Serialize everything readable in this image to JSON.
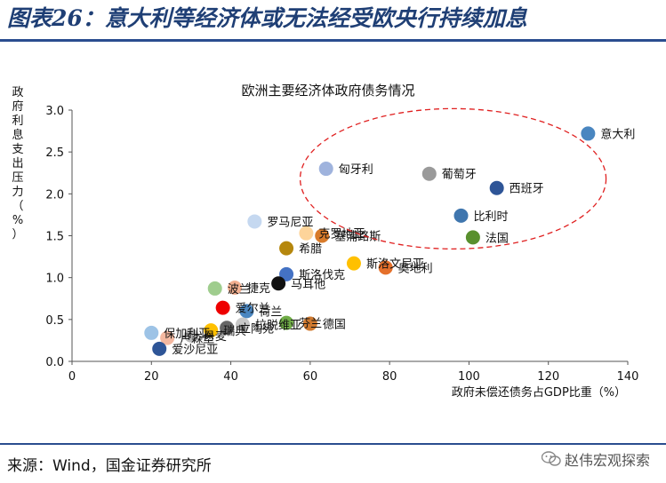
{
  "figure": {
    "title": "图表26：意大利等经济体或无法经受欧央行持续加息",
    "source": "来源：Wind，国金证券研究所",
    "watermark": "赵伟宏观探索",
    "rule_color": "#2a4d8f",
    "title_color": "#1f3f75"
  },
  "chart_data": {
    "type": "scatter",
    "title": "欧洲主要经济体政府债务情况",
    "xlabel": "政府未偿还债务占GDP比重（%）",
    "ylabel": "政府利息支出压力（%）",
    "xlim": [
      0,
      140
    ],
    "ylim": [
      0,
      3.0
    ],
    "xticks": [
      "0",
      "20",
      "40",
      "60",
      "80",
      "100",
      "120",
      "140"
    ],
    "yticks": [
      "0.0",
      "0.5",
      "1.0",
      "1.5",
      "2.0",
      "2.5",
      "3.0"
    ],
    "grid": false,
    "points": [
      {
        "label": "意大利",
        "x": 130,
        "y": 2.72,
        "color": "#4a86c0"
      },
      {
        "label": "匈牙利",
        "x": 64,
        "y": 2.3,
        "color": "#9fb3dd"
      },
      {
        "label": "葡萄牙",
        "x": 90,
        "y": 2.24,
        "color": "#9a9a9a"
      },
      {
        "label": "西班牙",
        "x": 107,
        "y": 2.07,
        "color": "#2e5597"
      },
      {
        "label": "比利时",
        "x": 98,
        "y": 1.74,
        "color": "#3f76ae"
      },
      {
        "label": "法国",
        "x": 101,
        "y": 1.48,
        "color": "#59902e"
      },
      {
        "label": "罗马尼亚",
        "x": 46,
        "y": 1.67,
        "color": "#c5d8f0"
      },
      {
        "label": "克罗地亚",
        "x": 59,
        "y": 1.53,
        "color": "#fdd49a"
      },
      {
        "label": "塞浦路斯",
        "x": 63,
        "y": 1.5,
        "color": "#d87b2a"
      },
      {
        "label": "希腊",
        "x": 54,
        "y": 1.35,
        "color": "#b5870d"
      },
      {
        "label": "斯洛文尼亚",
        "x": 71,
        "y": 1.17,
        "color": "#ffc000"
      },
      {
        "label": "奥地利",
        "x": 79,
        "y": 1.12,
        "color": "#e5702b"
      },
      {
        "label": "斯洛伐克",
        "x": 54,
        "y": 1.04,
        "color": "#4472c4"
      },
      {
        "label": "马耳他",
        "x": 52,
        "y": 0.93,
        "color": "#111111"
      },
      {
        "label": "波兰",
        "x": 36,
        "y": 0.87,
        "color": "#9fcd8e"
      },
      {
        "label": "捷克",
        "x": 41,
        "y": 0.88,
        "color": "#f4b091"
      },
      {
        "label": "爱尔兰",
        "x": 38,
        "y": 0.64,
        "color": "#ee0000"
      },
      {
        "label": "荷兰",
        "x": 44,
        "y": 0.6,
        "color": "#4a86c0"
      },
      {
        "label": "芬兰",
        "x": 54,
        "y": 0.46,
        "color": "#70ad47"
      },
      {
        "label": "德国",
        "x": 60,
        "y": 0.45,
        "color": "#d07a30"
      },
      {
        "label": "拉脱维亚",
        "x": 43,
        "y": 0.44,
        "color": "#c8c8c8"
      },
      {
        "label": "立陶宛",
        "x": 39,
        "y": 0.4,
        "color": "#666666"
      },
      {
        "label": "瑞典",
        "x": 35,
        "y": 0.37,
        "color": "#ffc000"
      },
      {
        "label": "丹麦",
        "x": 30,
        "y": 0.31,
        "color": "#bbbbbb"
      },
      {
        "label": "保加利亚",
        "x": 20,
        "y": 0.34,
        "color": "#9dc3e6"
      },
      {
        "label": "卢森堡",
        "x": 24,
        "y": 0.28,
        "color": "#f4b8a0"
      },
      {
        "label": "爱沙尼亚",
        "x": 22,
        "y": 0.15,
        "color": "#2e5597"
      }
    ],
    "annotation": {
      "shape": "dashed-ellipse",
      "color": "#e02020"
    }
  }
}
